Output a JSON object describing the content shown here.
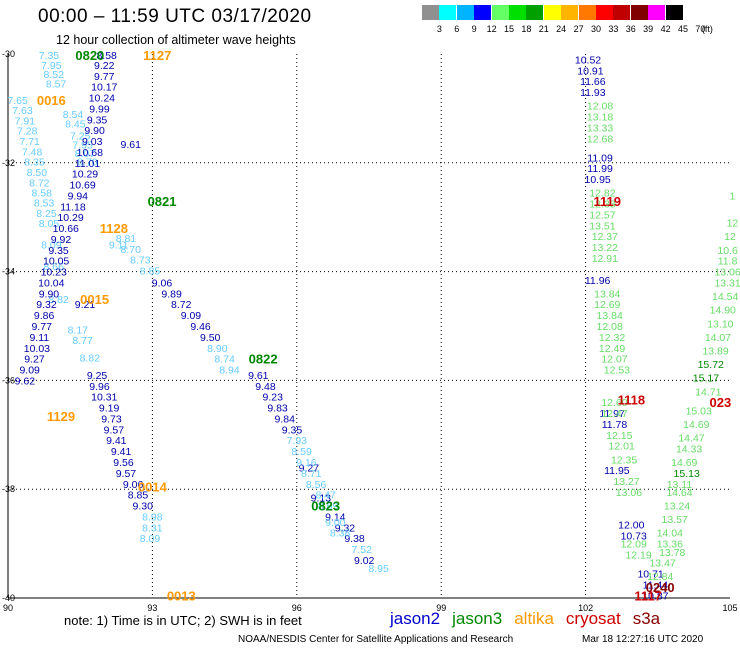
{
  "title": "00:00 – 11:59 UTC 03/17/2020",
  "subtitle": "12 hour collection of altimeter wave heights",
  "colorbar": {
    "unit": "(ft)",
    "boxes": [
      "#909090",
      "#00ffff",
      "#00b4ff",
      "#0000ff",
      "#64ff64",
      "#00e000",
      "#00a000",
      "#ffff00",
      "#ffb400",
      "#ff7800",
      "#ff0000",
      "#c00000",
      "#800000",
      "#ff00ff",
      "#000000"
    ],
    "ticks": [
      "3",
      "6",
      "9",
      "12",
      "15",
      "18",
      "21",
      "24",
      "27",
      "30",
      "33",
      "36",
      "39",
      "42",
      "45",
      "70"
    ]
  },
  "axes": {
    "x_ticks": [
      "90",
      "93",
      "96",
      "99",
      "102",
      "105"
    ],
    "y_ticks": [
      "-30",
      "-32",
      "-34",
      "-36",
      "-38",
      "-40"
    ]
  },
  "satellite_colors": {
    "jason2": "#0000cc",
    "jason3": "#008800",
    "altika": "#ff9900",
    "cryosat": "#cc0000",
    "s3a": "#880000",
    "w9": "#66ccff",
    "w12": "#0000aa",
    "w15": "#66dd66"
  },
  "time_labels": [
    {
      "text": "0820",
      "color": "jason3",
      "lon": 91.7,
      "lat": -30.02
    },
    {
      "text": "1127",
      "color": "altika",
      "lon": 93.1,
      "lat": -30.02
    },
    {
      "text": "0016",
      "color": "altika",
      "lon": 90.9,
      "lat": -30.85
    },
    {
      "text": "0821",
      "color": "jason3",
      "lon": 93.2,
      "lat": -32.7
    },
    {
      "text": "1128",
      "color": "altika",
      "lon": 92.2,
      "lat": -33.2
    },
    {
      "text": "0015",
      "color": "altika",
      "lon": 91.8,
      "lat": -34.5
    },
    {
      "text": "0822",
      "color": "jason3",
      "lon": 95.3,
      "lat": -35.6
    },
    {
      "text": "1129",
      "color": "altika",
      "lon": 91.1,
      "lat": -36.65
    },
    {
      "text": "0014",
      "color": "altika",
      "lon": 93.0,
      "lat": -37.95
    },
    {
      "text": "0823",
      "color": "jason3",
      "lon": 96.6,
      "lat": -38.3
    },
    {
      "text": "0013",
      "color": "altika",
      "lon": 93.6,
      "lat": -39.95
    },
    {
      "text": "1119",
      "color": "cryosat",
      "lon": 102.45,
      "lat": -32.7
    },
    {
      "text": "1118",
      "color": "cryosat",
      "lon": 102.95,
      "lat": -36.35
    },
    {
      "text": "023",
      "color": "cryosat",
      "lon": 104.8,
      "lat": -36.4
    },
    {
      "text": "0240",
      "color": "s3a",
      "lon": 103.55,
      "lat": -39.8
    },
    {
      "text": "1117",
      "color": "cryosat",
      "lon": 103.3,
      "lat": -39.95
    }
  ],
  "tracks": [
    {
      "color": "w9",
      "points": [
        [
          90.85,
          -30.02,
          "7.35"
        ],
        [
          90.9,
          -30.2,
          "7.95"
        ],
        [
          90.95,
          -30.37,
          "8.52"
        ],
        [
          91.0,
          -30.54,
          "8.57"
        ],
        [
          90.2,
          -30.85,
          "7.65"
        ],
        [
          90.3,
          -31.03,
          "7.63"
        ],
        [
          90.35,
          -31.22,
          "7.91"
        ],
        [
          90.4,
          -31.41,
          "7.28"
        ],
        [
          90.45,
          -31.6,
          "7.71"
        ],
        [
          90.5,
          -31.79,
          "7.48"
        ],
        [
          90.55,
          -31.98,
          "8.35"
        ],
        [
          90.6,
          -32.17,
          "8.50"
        ],
        [
          90.65,
          -32.36,
          "8.72"
        ],
        [
          90.7,
          -32.55,
          "8.58"
        ],
        [
          90.75,
          -32.73,
          "8.53"
        ],
        [
          90.8,
          -32.92,
          "8.25"
        ],
        [
          90.85,
          -33.11,
          "8.05"
        ],
        [
          90.9,
          -33.5,
          "8.09"
        ],
        [
          90.95,
          -33.9,
          "8.66"
        ],
        [
          91.05,
          -34.5,
          "8.82"
        ],
        [
          91.45,
          -35.06,
          "8.17"
        ],
        [
          91.55,
          -35.26,
          "8.77"
        ],
        [
          91.7,
          -35.58,
          "8.82"
        ],
        [
          91.35,
          -31.1,
          "8.54"
        ],
        [
          91.4,
          -31.28,
          "8.45"
        ],
        [
          91.5,
          -31.5,
          "7.25"
        ],
        [
          91.55,
          -31.66,
          "7.95"
        ],
        [
          91.6,
          -31.82,
          "8.07"
        ],
        [
          91.65,
          -31.98,
          "8.70"
        ],
        [
          92.3,
          -33.5,
          "9.11"
        ],
        [
          92.45,
          -33.38,
          "8.81"
        ],
        [
          92.55,
          -33.58,
          "8.70"
        ],
        [
          92.75,
          -33.78,
          "8.73"
        ],
        [
          92.95,
          -33.98,
          "8.85"
        ]
      ]
    },
    {
      "color": "w12",
      "points": [
        [
          92.05,
          -30.02,
          "8.58"
        ],
        [
          92.0,
          -30.2,
          "9.22"
        ],
        [
          92.0,
          -30.4,
          "9.77"
        ],
        [
          92.0,
          -30.6,
          "10.17"
        ],
        [
          91.95,
          -30.8,
          "10.24"
        ],
        [
          91.9,
          -31.0,
          "9.99"
        ],
        [
          91.85,
          -31.2,
          "9.35"
        ],
        [
          91.8,
          -31.4,
          "9.90"
        ],
        [
          91.75,
          -31.6,
          "9.03"
        ],
        [
          91.7,
          -31.8,
          "10.68"
        ],
        [
          91.65,
          -32.0,
          "11.01"
        ],
        [
          91.6,
          -32.2,
          "10.29"
        ],
        [
          91.55,
          -32.4,
          "10.69"
        ],
        [
          91.45,
          -32.6,
          "9.94"
        ],
        [
          91.35,
          -32.8,
          "11.18"
        ],
        [
          91.3,
          -33.0,
          "10.29"
        ],
        [
          91.2,
          -33.2,
          "10.66"
        ],
        [
          91.1,
          -33.4,
          "9.92"
        ],
        [
          91.05,
          -33.6,
          "9.35"
        ],
        [
          91.0,
          -33.8,
          "10.05"
        ],
        [
          90.95,
          -34.0,
          "10.23"
        ],
        [
          90.9,
          -34.2,
          "10.04"
        ],
        [
          90.85,
          -34.4,
          "9.90"
        ],
        [
          90.8,
          -34.6,
          "9.32"
        ],
        [
          90.75,
          -34.8,
          "9.86"
        ],
        [
          90.7,
          -35.0,
          "9.77"
        ],
        [
          90.65,
          -35.2,
          "9.11"
        ],
        [
          90.6,
          -35.4,
          "10.03"
        ],
        [
          90.55,
          -35.6,
          "9.27"
        ],
        [
          90.45,
          -35.8,
          "9.09"
        ],
        [
          90.35,
          -36.0,
          "9.62"
        ],
        [
          91.6,
          -34.6,
          "9.21"
        ],
        [
          91.85,
          -35.9,
          "9.25"
        ],
        [
          91.9,
          -36.1,
          "9.96"
        ],
        [
          92.0,
          -36.3,
          "10.31"
        ],
        [
          92.1,
          -36.5,
          "9.19"
        ],
        [
          92.15,
          -36.7,
          "9.73"
        ],
        [
          92.2,
          -36.9,
          "9.57"
        ],
        [
          92.25,
          -37.1,
          "9.41"
        ],
        [
          92.35,
          -37.3,
          "9.41"
        ],
        [
          92.4,
          -37.5,
          "9.56"
        ],
        [
          92.45,
          -37.7,
          "9.57"
        ],
        [
          92.6,
          -37.9,
          "9.06"
        ],
        [
          92.7,
          -38.1,
          "8.85"
        ],
        [
          92.8,
          -38.3,
          "9.30"
        ],
        [
          92.55,
          -31.65,
          "9.61"
        ],
        [
          93.2,
          -34.2,
          "9.06"
        ],
        [
          93.4,
          -34.4,
          "9.89"
        ],
        [
          93.6,
          -34.6,
          "8.72"
        ],
        [
          93.8,
          -34.8,
          "9.09"
        ],
        [
          94.0,
          -35.0,
          "9.46"
        ],
        [
          94.2,
          -35.2,
          "9.50"
        ],
        [
          95.2,
          -35.9,
          "9.61"
        ],
        [
          95.35,
          -36.1,
          "9.48"
        ],
        [
          95.5,
          -36.3,
          "9.23"
        ],
        [
          95.6,
          -36.5,
          "9.83"
        ],
        [
          95.75,
          -36.7,
          "9.84"
        ],
        [
          95.9,
          -36.9,
          "9.35"
        ],
        [
          96.25,
          -37.6,
          "9.27"
        ],
        [
          96.5,
          -38.15,
          "9.13"
        ],
        [
          96.8,
          -38.5,
          "9.14"
        ],
        [
          97.0,
          -38.7,
          "9.32"
        ],
        [
          97.2,
          -38.9,
          "9.38"
        ],
        [
          97.4,
          -39.3,
          "9.02"
        ]
      ]
    },
    {
      "color": "w9",
      "points": [
        [
          94.35,
          -35.4,
          "8.90"
        ],
        [
          94.5,
          -35.6,
          "8.74"
        ],
        [
          94.6,
          -35.8,
          "8.94"
        ],
        [
          96.0,
          -37.1,
          "7.93"
        ],
        [
          96.1,
          -37.3,
          "8.59"
        ],
        [
          96.2,
          -37.5,
          "9.16"
        ],
        [
          96.3,
          -37.7,
          "8.71"
        ],
        [
          96.4,
          -37.9,
          "8.56"
        ],
        [
          96.6,
          -38.1,
          "8.47"
        ],
        [
          96.65,
          -38.3,
          "8.69"
        ],
        [
          96.8,
          -38.6,
          "9.00"
        ],
        [
          96.9,
          -38.8,
          "8.38"
        ],
        [
          97.35,
          -39.1,
          "7.52"
        ],
        [
          97.7,
          -39.45,
          "8.95"
        ],
        [
          93.0,
          -38.5,
          "8.98"
        ],
        [
          93.0,
          -38.7,
          "8.31"
        ],
        [
          92.95,
          -38.9,
          "8.09"
        ]
      ]
    },
    {
      "color": "w12",
      "points": [
        [
          102.05,
          -30.1,
          "10.52"
        ],
        [
          102.1,
          -30.3,
          "10.91"
        ],
        [
          102.15,
          -30.5,
          "11.66"
        ],
        [
          102.15,
          -30.7,
          "11.93"
        ],
        [
          102.3,
          -31.9,
          "11.09"
        ],
        [
          102.3,
          -32.1,
          "11.99"
        ],
        [
          102.25,
          -32.3,
          "10.95"
        ],
        [
          102.25,
          -34.15,
          "11.96"
        ],
        [
          102.55,
          -36.6,
          "11.97"
        ],
        [
          102.6,
          -36.8,
          "11.78"
        ],
        [
          102.65,
          -37.65,
          "11.95"
        ],
        [
          102.95,
          -38.65,
          "12.00"
        ],
        [
          103.0,
          -38.85,
          "10.73"
        ],
        [
          103.35,
          -39.55,
          "10.71"
        ],
        [
          103.45,
          -39.75,
          "11.44"
        ],
        [
          103.45,
          -39.95,
          "10.87"
        ]
      ]
    },
    {
      "color": "w15",
      "points": [
        [
          102.3,
          -30.95,
          "12.08"
        ],
        [
          102.3,
          -31.15,
          "13.18"
        ],
        [
          102.3,
          -31.35,
          "13.33"
        ],
        [
          102.3,
          -31.55,
          "12.68"
        ],
        [
          102.35,
          -32.55,
          "12.82"
        ],
        [
          102.35,
          -32.75,
          "12.33"
        ],
        [
          102.35,
          -32.95,
          "12.57"
        ],
        [
          102.35,
          -33.15,
          "13.51"
        ],
        [
          102.4,
          -33.35,
          "12.37"
        ],
        [
          102.4,
          -33.55,
          "13.22"
        ],
        [
          102.4,
          -33.75,
          "12.91"
        ],
        [
          102.45,
          -34.4,
          "13.84"
        ],
        [
          102.45,
          -34.6,
          "12.69"
        ],
        [
          102.5,
          -34.8,
          "13.84"
        ],
        [
          102.5,
          -35.0,
          "12.08"
        ],
        [
          102.55,
          -35.2,
          "12.32"
        ],
        [
          102.55,
          -35.4,
          "12.49"
        ],
        [
          102.6,
          -35.6,
          "12.07"
        ],
        [
          102.65,
          -35.8,
          "12.53"
        ],
        [
          102.6,
          -36.4,
          "12.60"
        ],
        [
          102.6,
          -36.6,
          "12.47"
        ],
        [
          102.7,
          -37.0,
          "12.15"
        ],
        [
          102.75,
          -37.2,
          "12.01"
        ],
        [
          102.8,
          -37.45,
          "12.35"
        ],
        [
          102.85,
          -37.85,
          "13.27"
        ],
        [
          102.9,
          -38.05,
          "13.06"
        ],
        [
          103.0,
          -39.0,
          "12.09"
        ],
        [
          103.1,
          -39.2,
          "12.19"
        ],
        [
          103.75,
          -39.0,
          "13.36"
        ],
        [
          103.8,
          -39.15,
          "13.78"
        ],
        [
          103.6,
          -39.35,
          "13.47"
        ],
        [
          103.55,
          -39.6,
          "12.84"
        ],
        [
          104.95,
          -34.0,
          "13.06"
        ],
        [
          104.95,
          -34.2,
          "13.31"
        ],
        [
          104.9,
          -34.45,
          "14.54"
        ],
        [
          104.85,
          -34.7,
          "14.90"
        ],
        [
          104.8,
          -34.95,
          "13.10"
        ],
        [
          104.75,
          -35.2,
          "14.07"
        ],
        [
          104.7,
          -35.45,
          "13.89"
        ],
        [
          104.55,
          -36.2,
          "14.71"
        ],
        [
          104.35,
          -36.55,
          "15.03"
        ],
        [
          104.3,
          -36.8,
          "14.69"
        ],
        [
          104.2,
          -37.05,
          "14.47"
        ],
        [
          104.15,
          -37.25,
          "14.33"
        ],
        [
          104.05,
          -37.5,
          "14.69"
        ],
        [
          103.95,
          -37.9,
          "13.11"
        ],
        [
          103.95,
          -38.05,
          "14.64"
        ],
        [
          103.9,
          -38.3,
          "13.24"
        ],
        [
          103.85,
          -38.55,
          "13.57"
        ],
        [
          103.75,
          -38.8,
          "14.04"
        ],
        [
          105.05,
          -33.1,
          "12"
        ],
        [
          105.0,
          -33.35,
          "12"
        ],
        [
          104.95,
          -33.6,
          "10.6"
        ],
        [
          104.95,
          -33.8,
          "11.8"
        ],
        [
          105.05,
          -32.6,
          "1"
        ]
      ]
    },
    {
      "color": "jason3",
      "points": [
        [
          104.6,
          -35.7,
          "15.72"
        ],
        [
          104.5,
          -35.95,
          "15.17"
        ],
        [
          104.1,
          -37.7,
          "15.13"
        ]
      ]
    }
  ],
  "note": "note: 1) Time is in UTC; 2) SWH is in feet",
  "legend": [
    {
      "name": "jason2",
      "color": "#0000cc"
    },
    {
      "name": "jason3",
      "color": "#008800"
    },
    {
      "name": "altika",
      "color": "#ff9900"
    },
    {
      "name": "cryosat",
      "color": "#cc0000"
    },
    {
      "name": "s3a",
      "color": "#880000"
    }
  ],
  "credit": "NOAA/NESDIS Center for Satellite Applications and Research",
  "stamp": "Mar 18 12:27:16 UTC 2020"
}
